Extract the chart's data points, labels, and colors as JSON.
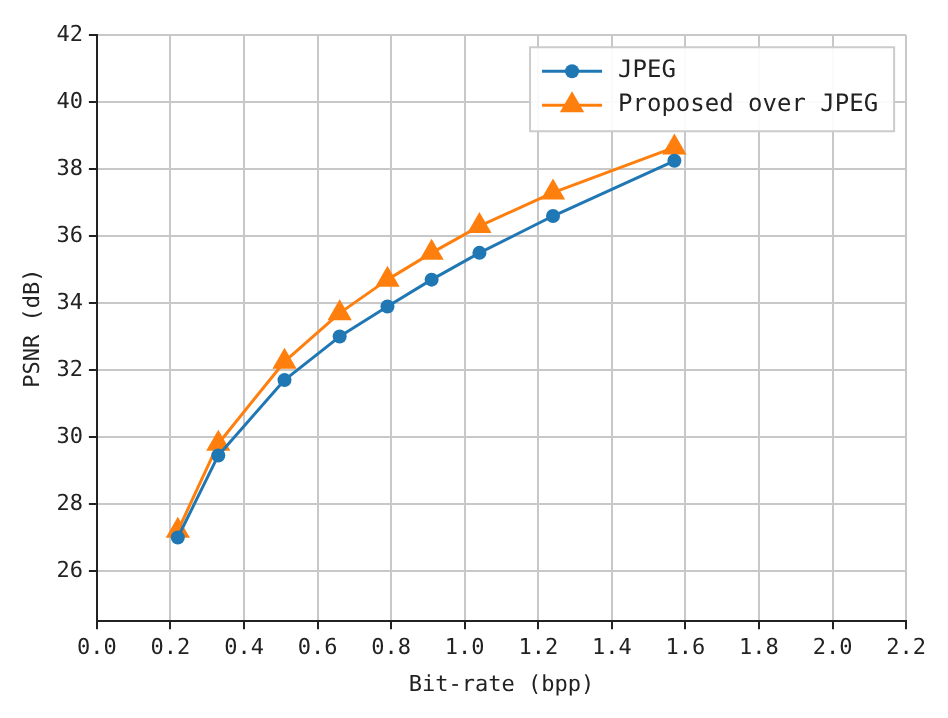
{
  "chart_data": {
    "type": "line",
    "xlabel": "Bit-rate (bpp)",
    "ylabel": "PSNR (dB)",
    "xlim": [
      0,
      2.2
    ],
    "xticks": [
      {
        "value": 0,
        "label": "0.0"
      },
      {
        "value": 0.2,
        "label": "0.2"
      },
      {
        "value": 0.4,
        "label": "0.4"
      },
      {
        "value": 0.6,
        "label": "0.6"
      },
      {
        "value": 0.8,
        "label": "0.8"
      },
      {
        "value": 1,
        "label": "1.0"
      },
      {
        "value": 1.2,
        "label": "1.2"
      },
      {
        "value": 1.4,
        "label": "1.4"
      },
      {
        "value": 1.6,
        "label": "1.6"
      },
      {
        "value": 1.8,
        "label": "1.8"
      },
      {
        "value": 2,
        "label": "2.0"
      },
      {
        "value": 2.2,
        "label": "2.2"
      }
    ],
    "ylim": [
      24.5,
      42
    ],
    "yticks": [
      26,
      28,
      30,
      32,
      34,
      36,
      38,
      40,
      42
    ],
    "grid": true,
    "legend": "top right",
    "series": [
      {
        "name": "JPEG",
        "color": "#1f77b4",
        "marker": "circle",
        "x": [
          0.22,
          0.33,
          0.51,
          0.66,
          0.79,
          0.91,
          1.04,
          1.24,
          1.57
        ],
        "values": [
          27.0,
          29.45,
          31.7,
          33.0,
          33.9,
          34.7,
          35.5,
          36.6,
          38.25
        ]
      },
      {
        "name": "Proposed over JPEG",
        "color": "#ff7f0e",
        "marker": "triangle",
        "x": [
          0.22,
          0.33,
          0.51,
          0.66,
          0.79,
          0.91,
          1.04,
          1.24,
          1.57
        ],
        "values": [
          27.2,
          29.8,
          32.25,
          33.7,
          34.7,
          35.5,
          36.3,
          37.3,
          38.65
        ]
      }
    ]
  }
}
